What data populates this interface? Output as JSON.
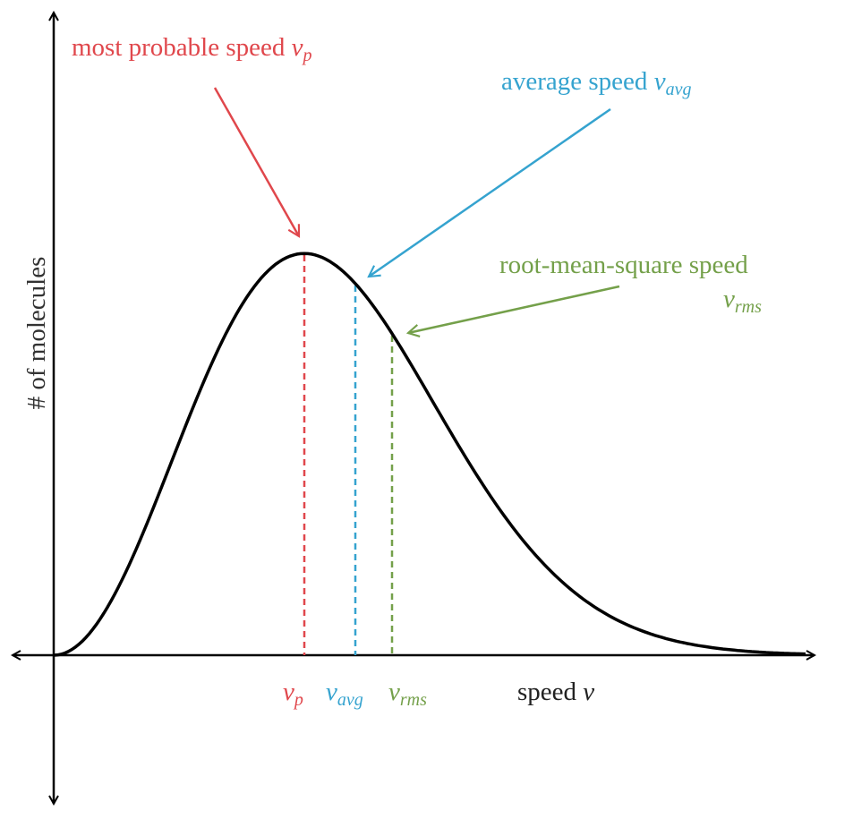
{
  "annotations": [
    {
      "text": "most probable speed",
      "symbol": "v",
      "subscript": "p"
    },
    {
      "text": "average speed",
      "symbol": "v",
      "subscript": "avg"
    },
    {
      "text": "root-mean-square speed",
      "symbol": "v",
      "subscript": "rms"
    }
  ],
  "axes": {
    "y_label": "# of molecules",
    "x_label": {
      "text": "speed",
      "symbol": "v"
    }
  },
  "markers": [
    {
      "symbol": "v",
      "subscript": "p"
    },
    {
      "symbol": "v",
      "subscript": "avg"
    },
    {
      "symbol": "v",
      "subscript": "rms"
    }
  ]
}
